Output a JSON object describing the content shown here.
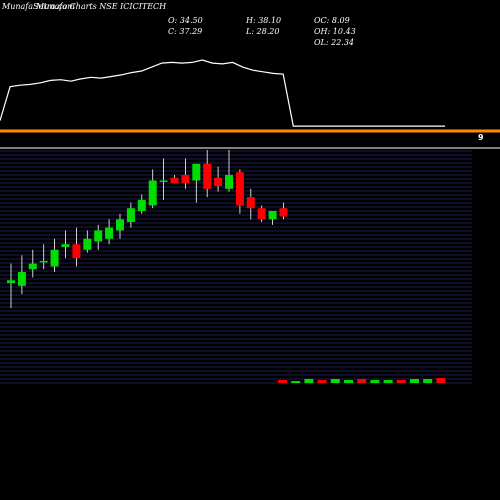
{
  "header": {
    "site": "MunafaSutra.com",
    "title": "Munafa Charts NSE ICICITECH"
  },
  "ohlc": {
    "open": "O: 34.50",
    "high": "H: 38.10",
    "oc": "OC: 8.09",
    "close": "C: 37.29",
    "low": "L: 28.20",
    "oh": "OH: 10.43",
    "ol": "OL: 22.34"
  },
  "right_marker": "9",
  "colors": {
    "background": "#000000",
    "up": "#00dd00",
    "down": "#ff0000",
    "line": "#ffffff",
    "separator": "#ff8c00",
    "grid": "#3a3aa0"
  },
  "chart_data": [
    {
      "type": "line",
      "values": [
        12,
        55,
        57,
        58,
        60,
        63,
        64,
        62,
        65,
        67,
        66,
        68,
        70,
        73,
        75,
        80,
        85,
        86,
        85,
        86,
        89,
        85,
        84,
        86,
        80,
        76,
        74,
        72,
        71,
        5,
        5,
        5,
        5,
        5,
        5,
        5,
        5,
        5,
        5,
        5,
        5,
        5,
        5,
        5,
        5
      ]
    },
    {
      "type": "candlestick",
      "candles": [
        {
          "o": 24,
          "h": 31,
          "l": 15,
          "c": 25
        },
        {
          "o": 23,
          "h": 34,
          "l": 20,
          "c": 28
        },
        {
          "o": 29,
          "h": 36,
          "l": 26,
          "c": 31
        },
        {
          "o": 32,
          "h": 38,
          "l": 29,
          "c": 32
        },
        {
          "o": 30,
          "h": 40,
          "l": 28,
          "c": 36
        },
        {
          "o": 37,
          "h": 43,
          "l": 33,
          "c": 38
        },
        {
          "o": 38,
          "h": 44,
          "l": 30,
          "c": 33
        },
        {
          "o": 36,
          "h": 43,
          "l": 35,
          "c": 40
        },
        {
          "o": 39,
          "h": 45,
          "l": 36,
          "c": 43
        },
        {
          "o": 40,
          "h": 47,
          "l": 38,
          "c": 44
        },
        {
          "o": 43,
          "h": 49,
          "l": 40,
          "c": 47
        },
        {
          "o": 46,
          "h": 53,
          "l": 44,
          "c": 51
        },
        {
          "o": 50,
          "h": 56,
          "l": 49,
          "c": 54
        },
        {
          "o": 52,
          "h": 65,
          "l": 51,
          "c": 61
        },
        {
          "o": 61,
          "h": 69,
          "l": 54,
          "c": 61
        },
        {
          "o": 62,
          "h": 63,
          "l": 60,
          "c": 60
        },
        {
          "o": 63,
          "h": 69,
          "l": 58,
          "c": 60
        },
        {
          "o": 61,
          "h": 67,
          "l": 53,
          "c": 67
        },
        {
          "o": 67,
          "h": 72,
          "l": 55,
          "c": 58
        },
        {
          "o": 62,
          "h": 66,
          "l": 57,
          "c": 59
        },
        {
          "o": 58,
          "h": 72,
          "l": 57,
          "c": 63
        },
        {
          "o": 64,
          "h": 65,
          "l": 49,
          "c": 52
        },
        {
          "o": 55,
          "h": 58,
          "l": 47,
          "c": 51
        },
        {
          "o": 51,
          "h": 52,
          "l": 46,
          "c": 47
        },
        {
          "o": 47,
          "h": 50,
          "l": 45,
          "c": 50
        },
        {
          "o": 51,
          "h": 53,
          "l": 47,
          "c": 48
        }
      ]
    },
    {
      "type": "bar",
      "values": [
        3,
        2,
        4,
        3,
        4,
        3,
        4,
        3,
        3,
        3,
        4,
        4,
        5
      ]
    }
  ]
}
